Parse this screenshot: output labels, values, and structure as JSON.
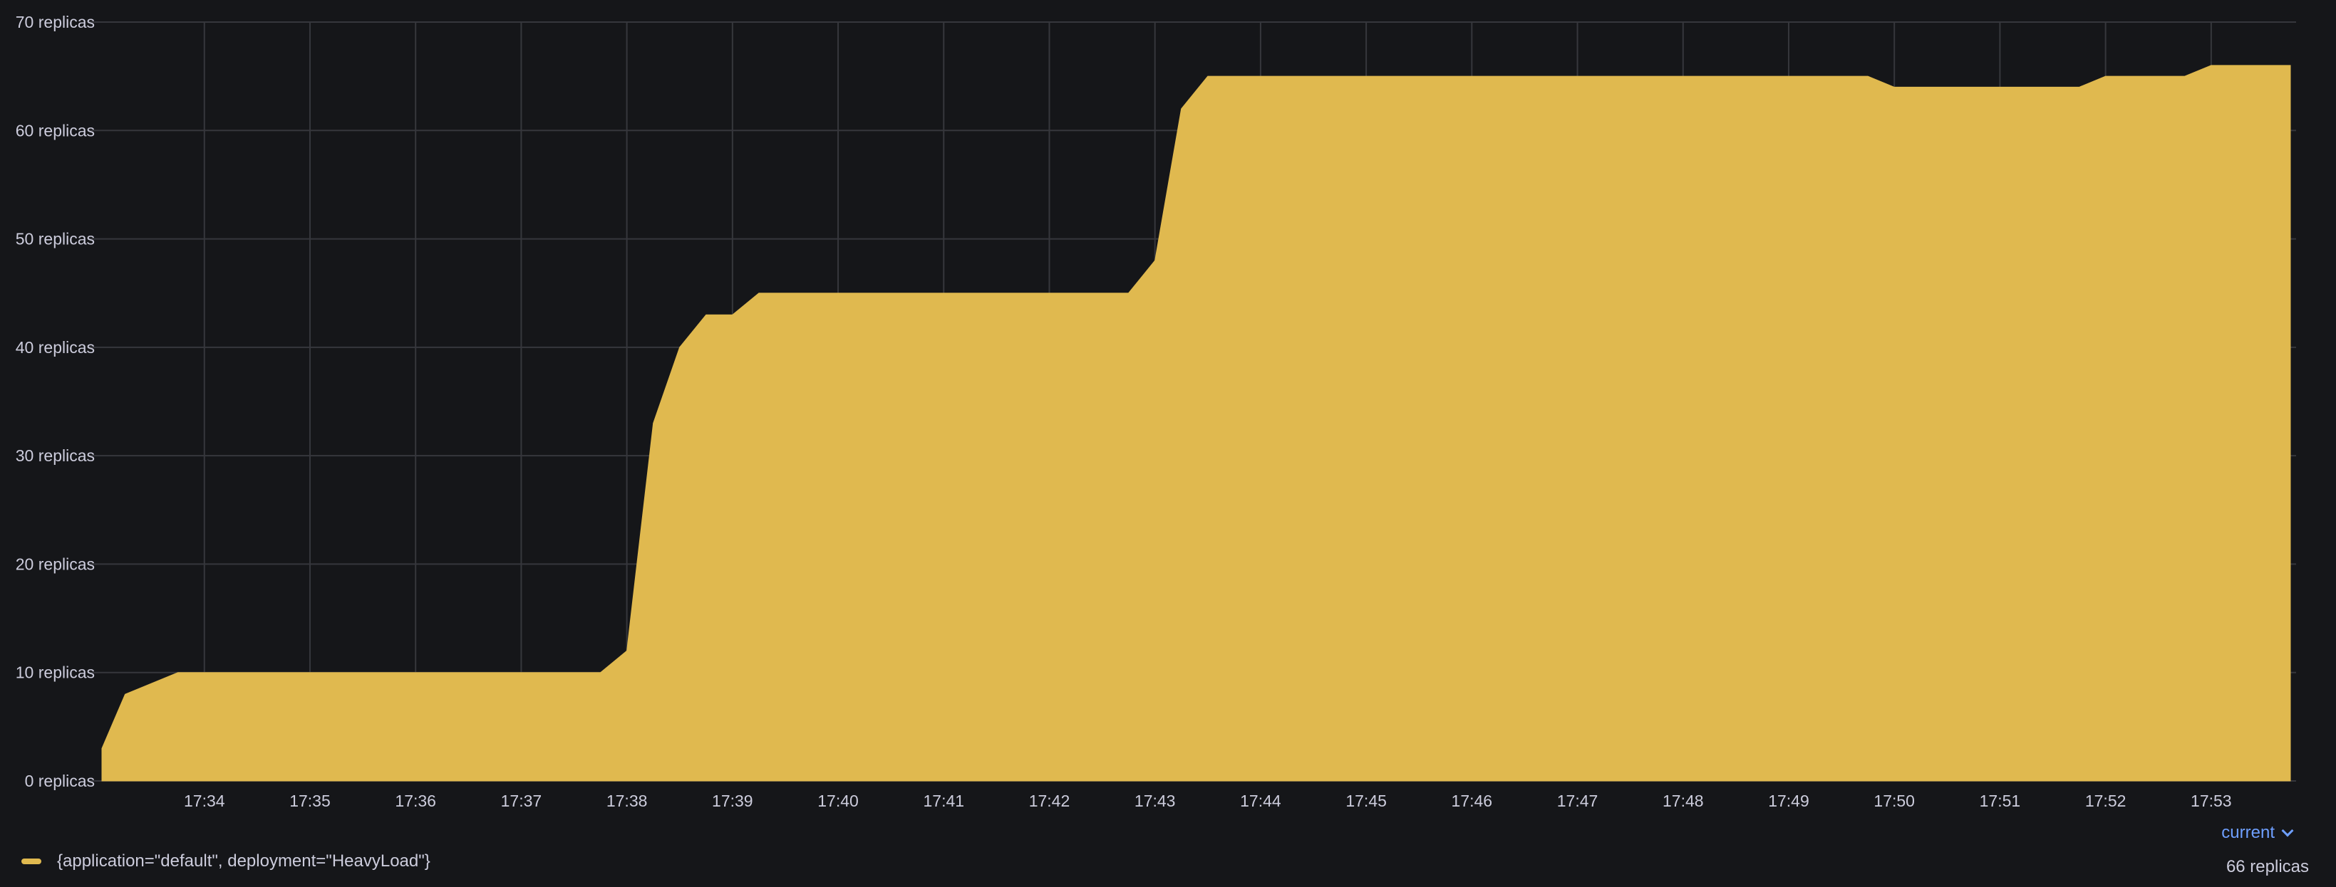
{
  "chart_data": {
    "type": "area",
    "title": "",
    "xlabel": "",
    "ylabel": "",
    "ylim": [
      0,
      70
    ],
    "y_ticks": [
      0,
      10,
      20,
      30,
      40,
      50,
      60,
      70
    ],
    "y_tick_labels": [
      "0 replicas",
      "10 replicas",
      "20 replicas",
      "30 replicas",
      "40 replicas",
      "50 replicas",
      "60 replicas",
      "70 replicas"
    ],
    "xlim_minutes": [
      33.03,
      53.75
    ],
    "x_ticks_minutes": [
      34,
      35,
      36,
      37,
      38,
      39,
      40,
      41,
      42,
      43,
      44,
      45,
      46,
      47,
      48,
      49,
      50,
      51,
      52,
      53
    ],
    "x_tick_labels": [
      "17:34",
      "17:35",
      "17:36",
      "17:37",
      "17:38",
      "17:39",
      "17:40",
      "17:41",
      "17:42",
      "17:43",
      "17:44",
      "17:45",
      "17:46",
      "17:47",
      "17:48",
      "17:49",
      "17:50",
      "17:51",
      "17:52",
      "17:53"
    ],
    "grid": true,
    "color": "#e0b94f",
    "series": [
      {
        "name": "{application=\"default\", deployment=\"HeavyLoad\"}",
        "x_minutes": [
          33.03,
          33.03,
          33.25,
          33.75,
          37.75,
          38.0,
          38.25,
          38.5,
          38.75,
          39.0,
          39.25,
          42.75,
          43.0,
          43.25,
          43.5,
          49.75,
          50.0,
          51.75,
          52.0,
          52.75,
          53.0,
          53.75
        ],
        "values": [
          0,
          3,
          8,
          10,
          10,
          12,
          33,
          40,
          43,
          43,
          45,
          45,
          48,
          62,
          65,
          65,
          64,
          64,
          65,
          65,
          66,
          66
        ]
      }
    ]
  },
  "legend": {
    "header": "current",
    "series_label": "{application=\"default\", deployment=\"HeavyLoad\"}",
    "current_value": "66 replicas"
  }
}
